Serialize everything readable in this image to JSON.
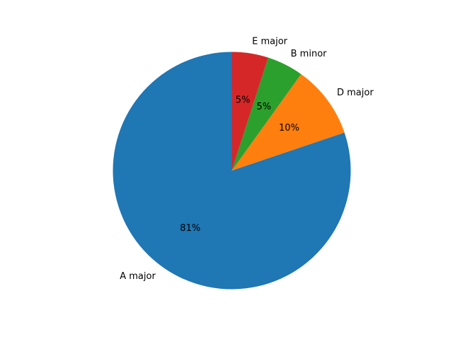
{
  "chart_data": {
    "type": "pie",
    "start_angle_deg": 90,
    "direction": "counterclockwise",
    "legend": "none",
    "slices": [
      {
        "label": "A major",
        "value": 81,
        "pct_label": "81%",
        "color": "#1f77b4"
      },
      {
        "label": "D major",
        "value": 10,
        "pct_label": "10%",
        "color": "#ff7f0e"
      },
      {
        "label": "B minor",
        "value": 5,
        "pct_label": "5%",
        "color": "#2ca02c"
      },
      {
        "label": "E major",
        "value": 5,
        "pct_label": "5%",
        "color": "#d62728"
      }
    ]
  }
}
